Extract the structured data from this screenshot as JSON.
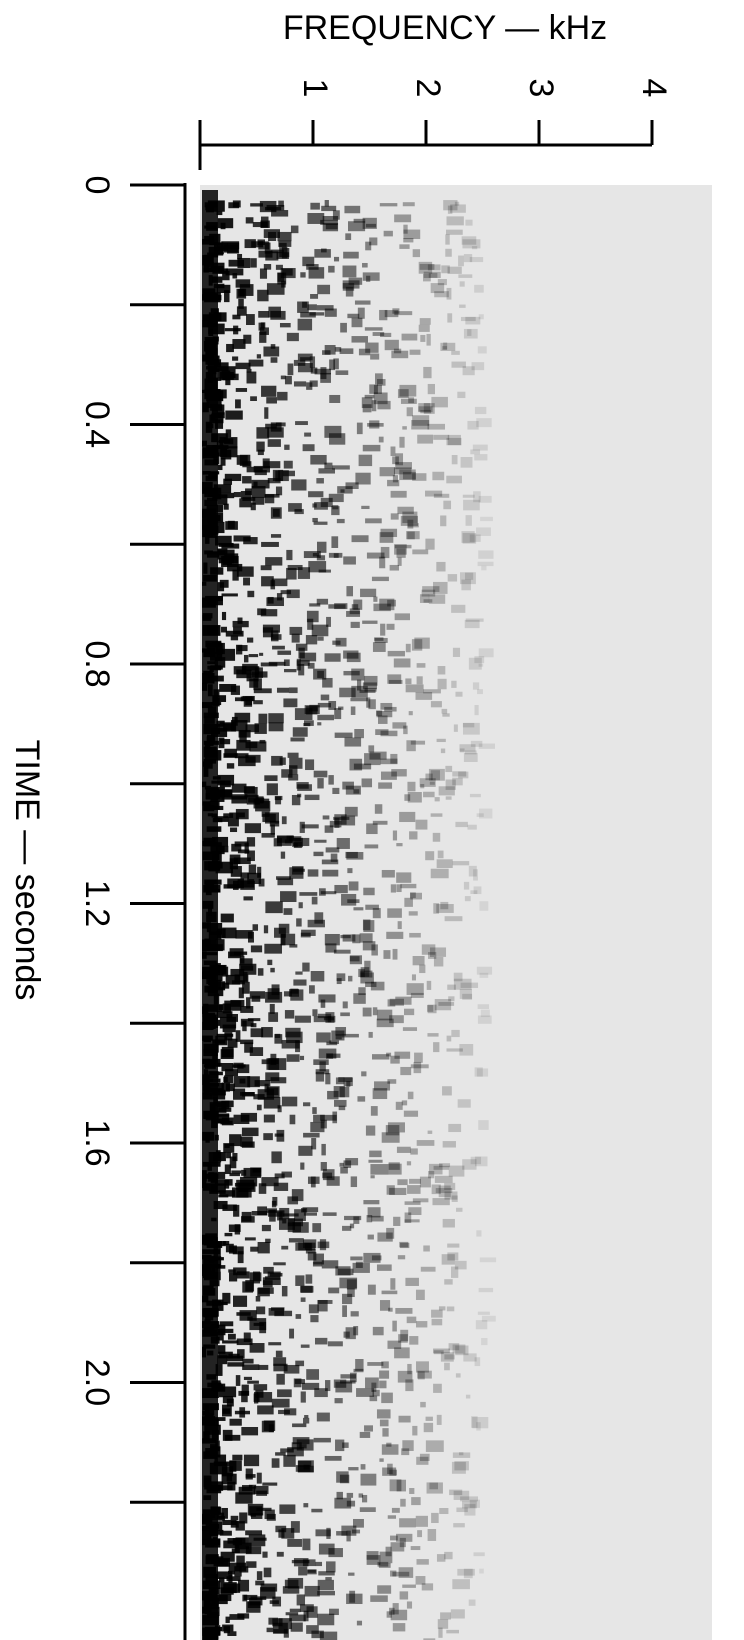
{
  "chart_data": {
    "type": "spectrogram",
    "x_label": "FREQUENCY — kHz",
    "y_label": "TIME — seconds",
    "xlim": [
      0,
      4
    ],
    "xticks": [
      1,
      2,
      3,
      4
    ],
    "ylim": [
      0,
      2.43
    ],
    "yticks": [
      0,
      {
        "value": 0.4,
        "label": "0.4"
      },
      {
        "value": 0.8,
        "label": "0.8"
      },
      {
        "value": 1.2,
        "label": "1.2"
      },
      {
        "value": 1.6,
        "label": "1.6"
      },
      {
        "value": 2.0,
        "label": "2.0"
      }
    ],
    "yminorticks": [
      0.2,
      0.6,
      1.0,
      1.4,
      1.8,
      2.2
    ],
    "color": "#000000"
  }
}
